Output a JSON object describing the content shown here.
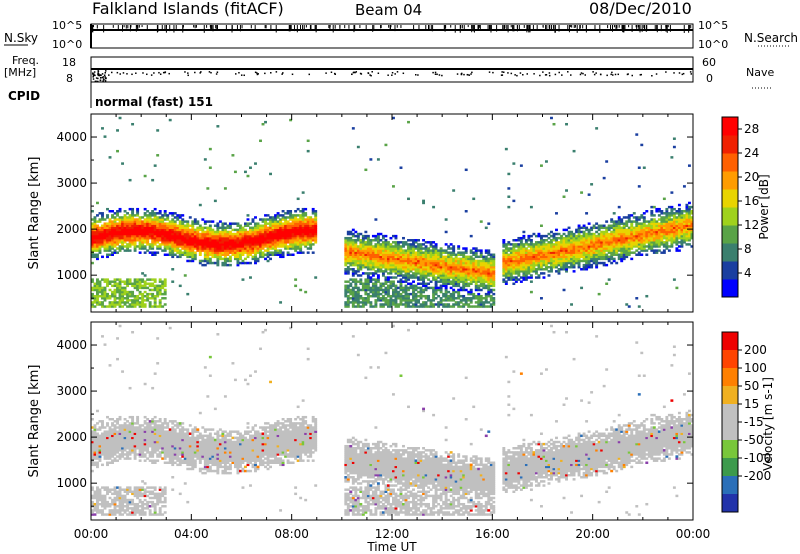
{
  "header": {
    "title": "Falkland Islands (fitACF)",
    "beam": "Beam 04",
    "date": "08/Dec/2010"
  },
  "top_panels": {
    "nsky_label": "N.Sky",
    "nsky_ticks": [
      "10^5",
      "10^0"
    ],
    "nsearch_label": "N.Search",
    "nsearch_ticks": [
      "10^5",
      "10^0"
    ],
    "freq_label_1": "Freq.",
    "freq_label_2": "[MHz]",
    "freq_ticks": [
      "18",
      "8"
    ],
    "nave_label": "Nave",
    "nave_ticks": [
      "60",
      "0"
    ],
    "cpid_label": "CPID",
    "cpid_text": "normal (fast) 151"
  },
  "colors": {
    "power_scale": [
      "#0000ff",
      "#1a3fa0",
      "#3a7f6e",
      "#59a347",
      "#9fd21c",
      "#e8d400",
      "#ff9c00",
      "#ff6000",
      "#f02000",
      "#ff0000"
    ],
    "velocity_scale": [
      "#2233aa",
      "#2a6fb8",
      "#3c9a4c",
      "#78c73a",
      "#c0c0c0",
      "#c0c0c0",
      "#f0b020",
      "#ff8000",
      "#ff4400",
      "#ee0000"
    ]
  },
  "chart_data": [
    {
      "type": "heatmap",
      "name": "power",
      "xlabel": "Time UT",
      "ylabel": "Slant Range [km]",
      "x_ticks": [
        "00:00",
        "04:00",
        "08:00",
        "12:00",
        "16:00",
        "20:00",
        "00:00"
      ],
      "xlim_hours": [
        0,
        24
      ],
      "y_ticks": [
        1000,
        2000,
        3000,
        4000
      ],
      "ylim": [
        200,
        4500
      ],
      "colorbar_label": "Power [dB]",
      "colorbar_ticks": [
        4,
        8,
        12,
        16,
        20,
        24,
        28
      ],
      "colorbar_range": [
        0,
        30
      ],
      "data_gaps_hours": [
        [
          8.9,
          10.0
        ],
        [
          16.0,
          16.3
        ]
      ]
    },
    {
      "type": "heatmap",
      "name": "velocity",
      "xlabel": "Time UT",
      "ylabel": "Slant Range [km]",
      "x_ticks": [
        "00:00",
        "04:00",
        "08:00",
        "12:00",
        "16:00",
        "20:00",
        "00:00"
      ],
      "xlim_hours": [
        0,
        24
      ],
      "y_ticks": [
        1000,
        2000,
        3000,
        4000
      ],
      "ylim": [
        200,
        4500
      ],
      "colorbar_label": "Velocity [m s-1]",
      "colorbar_ticks": [
        200,
        100,
        50,
        15,
        -15,
        -50,
        -100,
        -200
      ],
      "colorbar_range": [
        -250,
        250
      ]
    }
  ]
}
